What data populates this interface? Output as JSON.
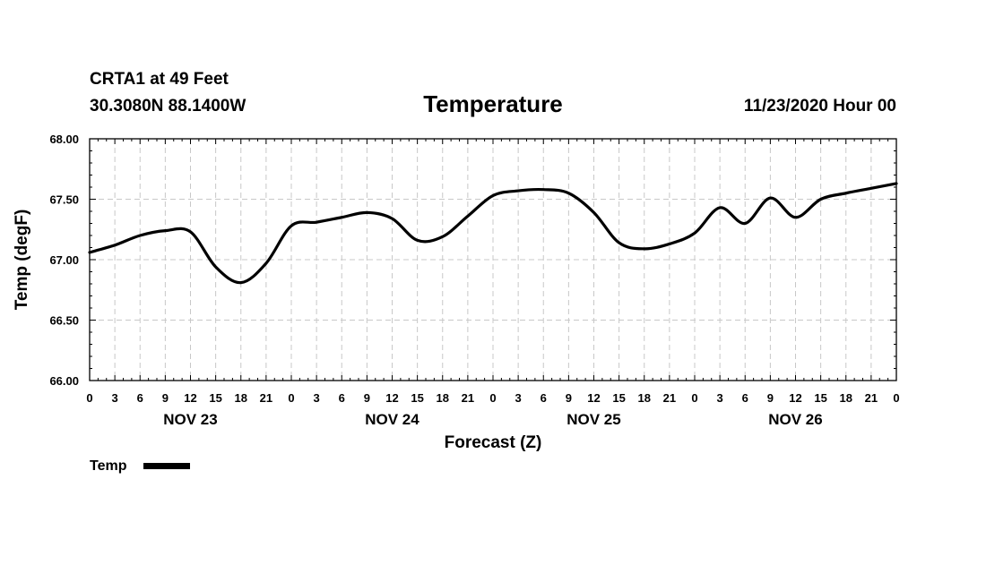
{
  "header": {
    "station": "CRTA1 at 49 Feet",
    "coords": "30.3080N 88.1400W",
    "datetime": "11/23/2020 Hour 00"
  },
  "chart_data": {
    "type": "line",
    "title": "Temperature",
    "xlabel": "Forecast (Z)",
    "ylabel": "Temp (degF)",
    "x_unit": "hours from 11/23/2020 00Z",
    "xlim": [
      0,
      96
    ],
    "ylim": [
      66.0,
      68.0
    ],
    "y_ticks": [
      "66.00",
      "66.50",
      "67.00",
      "67.50",
      "68.00"
    ],
    "x_tick_labels": [
      "0",
      "3",
      "6",
      "9",
      "12",
      "15",
      "18",
      "21",
      "0",
      "3",
      "6",
      "9",
      "12",
      "15",
      "18",
      "21",
      "0",
      "3",
      "6",
      "9",
      "12",
      "15",
      "18",
      "21",
      "0",
      "3",
      "6",
      "9",
      "12",
      "15",
      "18",
      "21",
      "0"
    ],
    "day_labels": [
      "NOV 23",
      "NOV 24",
      "NOV 25",
      "NOV 26"
    ],
    "grid": true,
    "legend": "bottom-left",
    "series": [
      {
        "name": "Temp",
        "color": "#000000",
        "x": [
          0,
          3,
          6,
          9,
          12,
          15,
          18,
          21,
          24,
          27,
          30,
          33,
          36,
          39,
          42,
          45,
          48,
          51,
          54,
          57,
          60,
          63,
          66,
          69,
          72,
          75,
          78,
          81,
          84,
          87,
          90,
          93,
          96
        ],
        "values": [
          67.06,
          67.12,
          67.2,
          67.24,
          67.23,
          66.94,
          66.81,
          66.97,
          67.28,
          67.31,
          67.35,
          67.39,
          67.34,
          67.16,
          67.19,
          67.36,
          67.53,
          67.57,
          67.58,
          67.55,
          67.39,
          67.14,
          67.09,
          67.13,
          67.22,
          67.43,
          67.3,
          67.51,
          67.35,
          67.5,
          67.55,
          67.59,
          67.63
        ]
      }
    ]
  }
}
